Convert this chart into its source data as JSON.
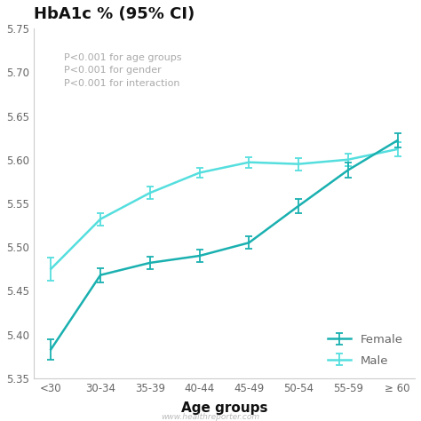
{
  "title": "HbA1c % (95% CI)",
  "xlabel": "Age groups",
  "categories": [
    "<30",
    "30-34",
    "35-39",
    "40-44",
    "45-49",
    "50-54",
    "55-59",
    "≥ 60"
  ],
  "female_values": [
    5.383,
    5.468,
    5.482,
    5.49,
    5.505,
    5.547,
    5.588,
    5.622
  ],
  "female_errors": [
    0.012,
    0.008,
    0.007,
    0.007,
    0.007,
    0.008,
    0.009,
    0.008
  ],
  "male_values": [
    5.475,
    5.532,
    5.562,
    5.585,
    5.597,
    5.595,
    5.6,
    5.612
  ],
  "male_errors": [
    0.013,
    0.007,
    0.007,
    0.006,
    0.006,
    0.007,
    0.007,
    0.008
  ],
  "female_color": "#1ab0b0",
  "male_color": "#55dede",
  "ylim": [
    5.35,
    5.75
  ],
  "yticks": [
    5.35,
    5.4,
    5.45,
    5.5,
    5.55,
    5.6,
    5.65,
    5.7,
    5.75
  ],
  "annotation": "P<0.001 for age groups\nP<0.001 for gender\nP<0.001 for interaction",
  "annotation_color": "#aaaaaa",
  "watermark": "www.healthreporter.com",
  "background_color": "#ffffff",
  "title_fontsize": 13,
  "axis_label_fontsize": 11,
  "tick_fontsize": 8.5,
  "legend_fontsize": 9.5,
  "annotation_fontsize": 8
}
